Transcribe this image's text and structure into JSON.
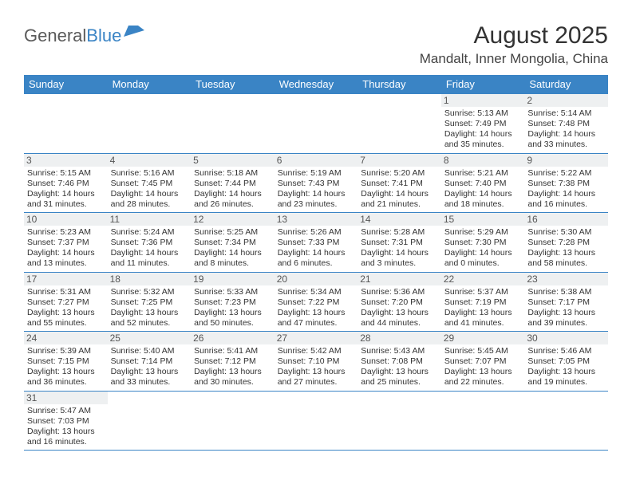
{
  "logo": {
    "text1": "General",
    "text2": "Blue"
  },
  "title": "August 2025",
  "subtitle": "Mandalt, Inner Mongolia, China",
  "colors": {
    "header_bg": "#3a84c5",
    "header_text": "#ffffff",
    "daynum_bg": "#eef0f1",
    "row_border": "#3a84c5",
    "text": "#333333",
    "logo_gray": "#5a5a5a"
  },
  "day_headers": [
    "Sunday",
    "Monday",
    "Tuesday",
    "Wednesday",
    "Thursday",
    "Friday",
    "Saturday"
  ],
  "weeks": [
    [
      null,
      null,
      null,
      null,
      null,
      {
        "n": "1",
        "sunrise": "5:13 AM",
        "sunset": "7:49 PM",
        "daylight": "14 hours and 35 minutes."
      },
      {
        "n": "2",
        "sunrise": "5:14 AM",
        "sunset": "7:48 PM",
        "daylight": "14 hours and 33 minutes."
      }
    ],
    [
      {
        "n": "3",
        "sunrise": "5:15 AM",
        "sunset": "7:46 PM",
        "daylight": "14 hours and 31 minutes."
      },
      {
        "n": "4",
        "sunrise": "5:16 AM",
        "sunset": "7:45 PM",
        "daylight": "14 hours and 28 minutes."
      },
      {
        "n": "5",
        "sunrise": "5:18 AM",
        "sunset": "7:44 PM",
        "daylight": "14 hours and 26 minutes."
      },
      {
        "n": "6",
        "sunrise": "5:19 AM",
        "sunset": "7:43 PM",
        "daylight": "14 hours and 23 minutes."
      },
      {
        "n": "7",
        "sunrise": "5:20 AM",
        "sunset": "7:41 PM",
        "daylight": "14 hours and 21 minutes."
      },
      {
        "n": "8",
        "sunrise": "5:21 AM",
        "sunset": "7:40 PM",
        "daylight": "14 hours and 18 minutes."
      },
      {
        "n": "9",
        "sunrise": "5:22 AM",
        "sunset": "7:38 PM",
        "daylight": "14 hours and 16 minutes."
      }
    ],
    [
      {
        "n": "10",
        "sunrise": "5:23 AM",
        "sunset": "7:37 PM",
        "daylight": "14 hours and 13 minutes."
      },
      {
        "n": "11",
        "sunrise": "5:24 AM",
        "sunset": "7:36 PM",
        "daylight": "14 hours and 11 minutes."
      },
      {
        "n": "12",
        "sunrise": "5:25 AM",
        "sunset": "7:34 PM",
        "daylight": "14 hours and 8 minutes."
      },
      {
        "n": "13",
        "sunrise": "5:26 AM",
        "sunset": "7:33 PM",
        "daylight": "14 hours and 6 minutes."
      },
      {
        "n": "14",
        "sunrise": "5:28 AM",
        "sunset": "7:31 PM",
        "daylight": "14 hours and 3 minutes."
      },
      {
        "n": "15",
        "sunrise": "5:29 AM",
        "sunset": "7:30 PM",
        "daylight": "14 hours and 0 minutes."
      },
      {
        "n": "16",
        "sunrise": "5:30 AM",
        "sunset": "7:28 PM",
        "daylight": "13 hours and 58 minutes."
      }
    ],
    [
      {
        "n": "17",
        "sunrise": "5:31 AM",
        "sunset": "7:27 PM",
        "daylight": "13 hours and 55 minutes."
      },
      {
        "n": "18",
        "sunrise": "5:32 AM",
        "sunset": "7:25 PM",
        "daylight": "13 hours and 52 minutes."
      },
      {
        "n": "19",
        "sunrise": "5:33 AM",
        "sunset": "7:23 PM",
        "daylight": "13 hours and 50 minutes."
      },
      {
        "n": "20",
        "sunrise": "5:34 AM",
        "sunset": "7:22 PM",
        "daylight": "13 hours and 47 minutes."
      },
      {
        "n": "21",
        "sunrise": "5:36 AM",
        "sunset": "7:20 PM",
        "daylight": "13 hours and 44 minutes."
      },
      {
        "n": "22",
        "sunrise": "5:37 AM",
        "sunset": "7:19 PM",
        "daylight": "13 hours and 41 minutes."
      },
      {
        "n": "23",
        "sunrise": "5:38 AM",
        "sunset": "7:17 PM",
        "daylight": "13 hours and 39 minutes."
      }
    ],
    [
      {
        "n": "24",
        "sunrise": "5:39 AM",
        "sunset": "7:15 PM",
        "daylight": "13 hours and 36 minutes."
      },
      {
        "n": "25",
        "sunrise": "5:40 AM",
        "sunset": "7:14 PM",
        "daylight": "13 hours and 33 minutes."
      },
      {
        "n": "26",
        "sunrise": "5:41 AM",
        "sunset": "7:12 PM",
        "daylight": "13 hours and 30 minutes."
      },
      {
        "n": "27",
        "sunrise": "5:42 AM",
        "sunset": "7:10 PM",
        "daylight": "13 hours and 27 minutes."
      },
      {
        "n": "28",
        "sunrise": "5:43 AM",
        "sunset": "7:08 PM",
        "daylight": "13 hours and 25 minutes."
      },
      {
        "n": "29",
        "sunrise": "5:45 AM",
        "sunset": "7:07 PM",
        "daylight": "13 hours and 22 minutes."
      },
      {
        "n": "30",
        "sunrise": "5:46 AM",
        "sunset": "7:05 PM",
        "daylight": "13 hours and 19 minutes."
      }
    ],
    [
      {
        "n": "31",
        "sunrise": "5:47 AM",
        "sunset": "7:03 PM",
        "daylight": "13 hours and 16 minutes."
      },
      null,
      null,
      null,
      null,
      null,
      null
    ]
  ],
  "labels": {
    "sunrise": "Sunrise: ",
    "sunset": "Sunset: ",
    "daylight": "Daylight: "
  }
}
